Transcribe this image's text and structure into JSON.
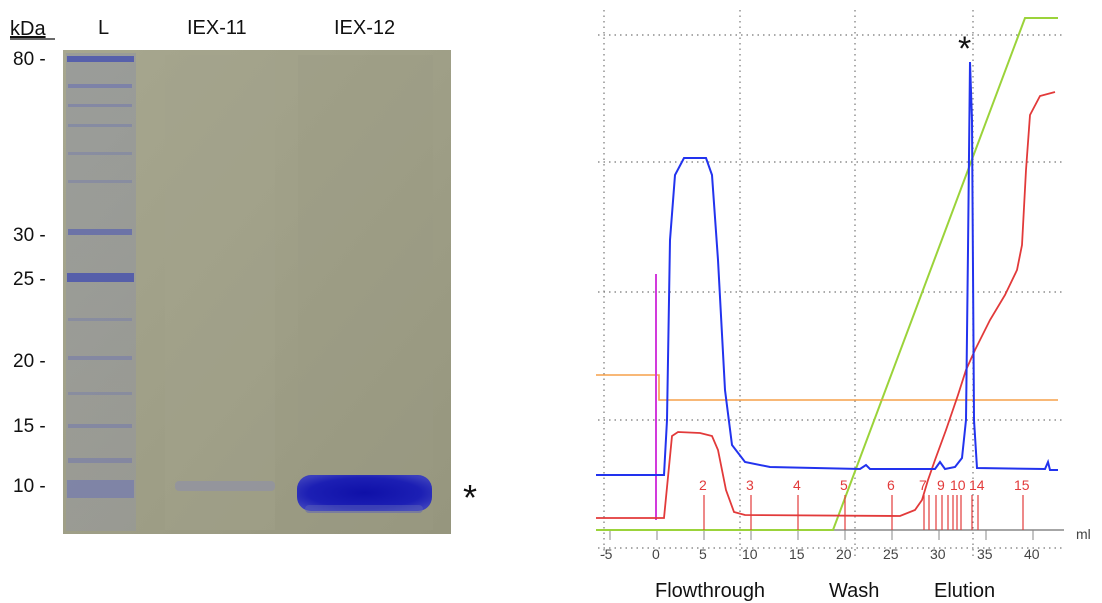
{
  "gel": {
    "unit_label": "kDa",
    "lanes": [
      {
        "label": "L"
      },
      {
        "label": "IEX-11"
      },
      {
        "label": "IEX-12"
      }
    ],
    "markers": [
      "80 -",
      "30 -",
      "25 -",
      "20 -",
      "15 -",
      "10 -"
    ],
    "band_marker": "*"
  },
  "chromatogram": {
    "unit": "ml",
    "x_ticks": [
      "-5",
      "0",
      "5",
      "10",
      "15",
      "20",
      "25",
      "30",
      "35",
      "40"
    ],
    "fractions": [
      "2",
      "3",
      "4",
      "5",
      "6",
      "7",
      "9",
      "10",
      "14",
      "15"
    ],
    "peak_marker": "*",
    "phases": [
      "Flowthrough",
      "Wash",
      "Elution"
    ]
  },
  "colors": {
    "gel_background": "#9f9f86",
    "band": "#1c1fb4",
    "uv_trace": "#2233ee",
    "conductivity_trace": "#e23a3a",
    "gradient_line": "#9bd33a",
    "pressure_line": "#f5a04a",
    "injection_mark": "#d23adc"
  }
}
